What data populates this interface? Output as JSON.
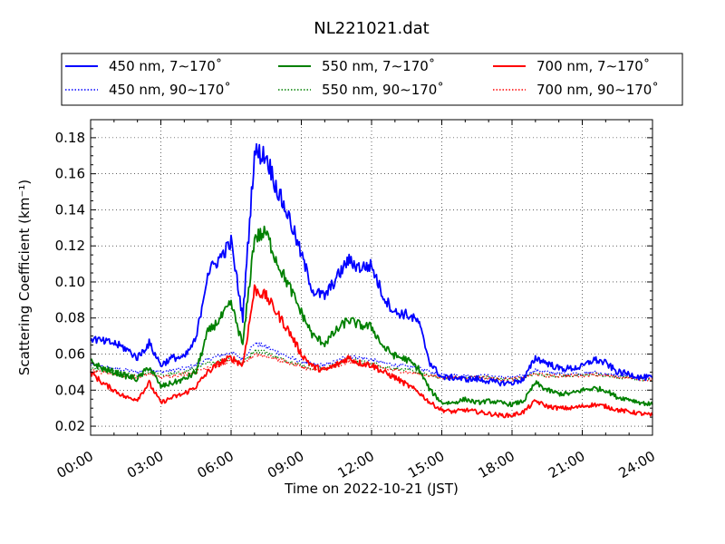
{
  "chart_data": {
    "type": "line",
    "title": "NL221021.dat",
    "xlabel": "Time on 2022-10-21 (JST)",
    "ylabel": "Scattering Coefficient (km⁻¹)",
    "xlim": [
      "00:00",
      "24:00"
    ],
    "ylim": [
      0.015,
      0.19
    ],
    "x_ticks": [
      "00:00",
      "03:00",
      "06:00",
      "09:00",
      "12:00",
      "15:00",
      "18:00",
      "21:00",
      "24:00"
    ],
    "y_ticks": [
      "0.02",
      "0.04",
      "0.06",
      "0.08",
      "0.10",
      "0.12",
      "0.14",
      "0.16",
      "0.18"
    ],
    "grid": true,
    "legend_position": "top",
    "x": [
      "00:00",
      "00:30",
      "01:00",
      "01:30",
      "02:00",
      "02:30",
      "03:00",
      "03:30",
      "04:00",
      "04:30",
      "05:00",
      "05:30",
      "06:00",
      "06:30",
      "07:00",
      "07:30",
      "08:00",
      "08:30",
      "09:00",
      "09:30",
      "10:00",
      "10:30",
      "11:00",
      "11:30",
      "12:00",
      "12:30",
      "13:00",
      "13:30",
      "14:00",
      "14:30",
      "15:00",
      "15:30",
      "16:00",
      "16:30",
      "17:00",
      "17:30",
      "18:00",
      "18:30",
      "19:00",
      "19:30",
      "20:00",
      "20:30",
      "21:00",
      "21:30",
      "22:00",
      "22:30",
      "23:00",
      "23:30",
      "24:00"
    ],
    "series": [
      {
        "name": "450 nm, 7∼170˚",
        "color": "#0000ff",
        "dash": "solid",
        "values": [
          0.069,
          0.067,
          0.066,
          0.063,
          0.058,
          0.066,
          0.054,
          0.058,
          0.058,
          0.068,
          0.105,
          0.113,
          0.122,
          0.08,
          0.172,
          0.17,
          0.15,
          0.135,
          0.115,
          0.095,
          0.092,
          0.102,
          0.112,
          0.108,
          0.109,
          0.092,
          0.083,
          0.082,
          0.078,
          0.055,
          0.047,
          0.047,
          0.046,
          0.046,
          0.045,
          0.044,
          0.044,
          0.046,
          0.058,
          0.055,
          0.052,
          0.052,
          0.053,
          0.057,
          0.055,
          0.05,
          0.049,
          0.047,
          0.047
        ]
      },
      {
        "name": "450 nm, 90∼170˚",
        "color": "#0000ff",
        "dash": "dotted",
        "values": [
          0.054,
          0.053,
          0.052,
          0.051,
          0.05,
          0.052,
          0.05,
          0.051,
          0.052,
          0.054,
          0.057,
          0.059,
          0.061,
          0.057,
          0.066,
          0.064,
          0.061,
          0.058,
          0.056,
          0.054,
          0.054,
          0.056,
          0.059,
          0.058,
          0.057,
          0.055,
          0.054,
          0.053,
          0.052,
          0.05,
          0.049,
          0.048,
          0.048,
          0.048,
          0.048,
          0.047,
          0.047,
          0.048,
          0.051,
          0.05,
          0.049,
          0.049,
          0.049,
          0.05,
          0.049,
          0.048,
          0.048,
          0.047,
          0.047
        ]
      },
      {
        "name": "550 nm, 7∼170˚",
        "color": "#008000",
        "dash": "solid",
        "values": [
          0.056,
          0.052,
          0.05,
          0.048,
          0.046,
          0.053,
          0.042,
          0.044,
          0.046,
          0.05,
          0.072,
          0.079,
          0.088,
          0.065,
          0.125,
          0.127,
          0.11,
          0.097,
          0.083,
          0.07,
          0.066,
          0.073,
          0.079,
          0.076,
          0.075,
          0.064,
          0.059,
          0.057,
          0.052,
          0.04,
          0.033,
          0.033,
          0.035,
          0.033,
          0.034,
          0.033,
          0.032,
          0.034,
          0.044,
          0.04,
          0.038,
          0.038,
          0.04,
          0.041,
          0.04,
          0.036,
          0.035,
          0.033,
          0.032
        ]
      },
      {
        "name": "550 nm, 90∼170˚",
        "color": "#008000",
        "dash": "dotted",
        "values": [
          0.052,
          0.051,
          0.05,
          0.049,
          0.048,
          0.05,
          0.048,
          0.049,
          0.05,
          0.052,
          0.055,
          0.056,
          0.058,
          0.055,
          0.062,
          0.061,
          0.058,
          0.056,
          0.054,
          0.052,
          0.052,
          0.054,
          0.057,
          0.056,
          0.055,
          0.053,
          0.052,
          0.051,
          0.05,
          0.048,
          0.047,
          0.047,
          0.047,
          0.047,
          0.047,
          0.046,
          0.046,
          0.047,
          0.049,
          0.048,
          0.048,
          0.048,
          0.048,
          0.049,
          0.048,
          0.047,
          0.047,
          0.046,
          0.046
        ]
      },
      {
        "name": "700 nm, 7∼170˚",
        "color": "#ff0000",
        "dash": "solid",
        "values": [
          0.05,
          0.044,
          0.04,
          0.036,
          0.035,
          0.044,
          0.033,
          0.036,
          0.038,
          0.042,
          0.05,
          0.055,
          0.058,
          0.054,
          0.096,
          0.092,
          0.082,
          0.072,
          0.06,
          0.053,
          0.051,
          0.054,
          0.058,
          0.055,
          0.054,
          0.05,
          0.047,
          0.043,
          0.039,
          0.033,
          0.029,
          0.028,
          0.029,
          0.028,
          0.027,
          0.026,
          0.026,
          0.028,
          0.034,
          0.031,
          0.03,
          0.03,
          0.031,
          0.032,
          0.031,
          0.029,
          0.028,
          0.027,
          0.026
        ]
      },
      {
        "name": "700 nm, 90∼170˚",
        "color": "#ff0000",
        "dash": "dotted",
        "values": [
          0.051,
          0.05,
          0.049,
          0.048,
          0.047,
          0.049,
          0.047,
          0.048,
          0.049,
          0.05,
          0.053,
          0.054,
          0.056,
          0.054,
          0.06,
          0.059,
          0.057,
          0.055,
          0.053,
          0.051,
          0.051,
          0.053,
          0.056,
          0.055,
          0.054,
          0.052,
          0.051,
          0.05,
          0.049,
          0.048,
          0.047,
          0.047,
          0.047,
          0.047,
          0.047,
          0.046,
          0.046,
          0.047,
          0.049,
          0.048,
          0.048,
          0.048,
          0.048,
          0.049,
          0.048,
          0.047,
          0.047,
          0.046,
          0.046
        ]
      }
    ]
  }
}
